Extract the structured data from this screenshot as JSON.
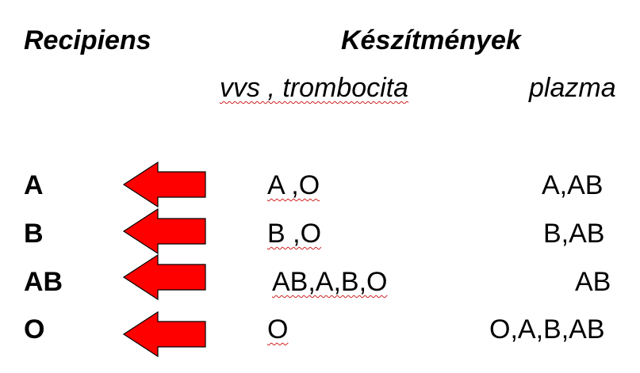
{
  "headers": {
    "recipients": "Recipiens",
    "products": "Készítmények",
    "rbc_platelet": "vvs , trombocita",
    "plasma": "plazma"
  },
  "rows": [
    {
      "recipient": "A",
      "rbc": "A ,O",
      "plasma": "A,AB"
    },
    {
      "recipient": "B",
      "rbc": "B ,O",
      "plasma": "B,AB"
    },
    {
      "recipient": "AB",
      "rbc": "AB,A,B,O",
      "plasma": "AB"
    },
    {
      "recipient": "O",
      "rbc": "O",
      "plasma": "O,A,B,AB"
    }
  ],
  "colors": {
    "arrow_fill": "#ff0000",
    "arrow_stroke": "#000000",
    "spellcheck_underline": "#d02020"
  },
  "icons": {
    "arrow": "left-arrow-icon"
  }
}
